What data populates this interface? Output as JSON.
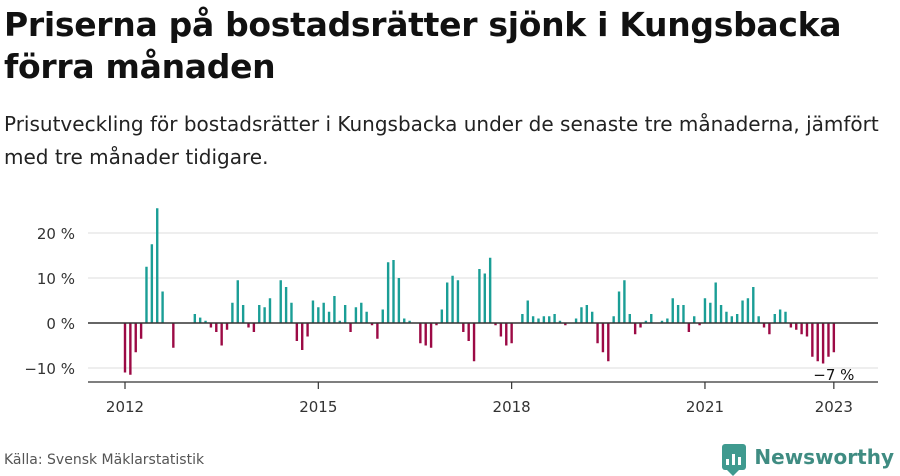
{
  "title": "Priserna på bostadsrätter sjönk i Kungsbacka förra månaden",
  "subtitle": "Prisutveckling för bostadsrätter i Kungsbacka under de senaste tre månaderna, jämfört med tre månader tidigare.",
  "source": "Källa: Svensk Mäklarstatistik",
  "brand": {
    "name": "Newsworthy",
    "icon": "newsworthy-logo-icon",
    "color": "#3f8c82"
  },
  "colors": {
    "positive": "#1a9e96",
    "negative": "#9c0a45",
    "grid": "#dddddd",
    "axis": "#333333"
  },
  "chart_data": {
    "type": "bar",
    "title": "",
    "xlabel": "",
    "ylabel": "",
    "x_start": "2011-10",
    "x_end": "2023-01",
    "y_unit": "%",
    "ylim": [
      -12,
      26
    ],
    "yticks": [
      {
        "value": -10,
        "label": "−10 %"
      },
      {
        "value": 0,
        "label": "0 %"
      },
      {
        "value": 10,
        "label": "10 %"
      },
      {
        "value": 20,
        "label": "20 %"
      }
    ],
    "xticks": [
      {
        "date": "2012-01",
        "label": "2012"
      },
      {
        "date": "2015-01",
        "label": "2015"
      },
      {
        "date": "2018-01",
        "label": "2018"
      },
      {
        "date": "2021-01",
        "label": "2021"
      },
      {
        "date": "2023-01",
        "label": "2023"
      }
    ],
    "grid": true,
    "annotation": {
      "date": "2023-01",
      "label": "−7 %"
    },
    "values": [
      0.0,
      0.0,
      0.0,
      -11.0,
      -11.5,
      -6.5,
      -3.5,
      12.5,
      17.5,
      25.5,
      7.0,
      0.0,
      -5.5,
      0.0,
      0.0,
      0.0,
      2.0,
      1.2,
      0.5,
      -1.0,
      -2.0,
      -5.0,
      -1.5,
      4.5,
      9.5,
      4.0,
      -1.0,
      -2.0,
      4.0,
      3.5,
      5.5,
      0.0,
      9.5,
      8.0,
      4.5,
      -4.0,
      -6.0,
      -3.0,
      5.0,
      3.5,
      4.5,
      2.5,
      6.0,
      0.5,
      4.0,
      -2.0,
      3.5,
      4.5,
      2.5,
      -0.5,
      -3.5,
      3.0,
      13.5,
      14.0,
      10.0,
      1.0,
      0.5,
      0.0,
      -4.5,
      -5.0,
      -5.5,
      -0.5,
      3.0,
      9.0,
      10.5,
      9.5,
      -2.0,
      -4.0,
      -8.5,
      12.0,
      11.0,
      14.5,
      -0.5,
      -3.0,
      -5.0,
      -4.5,
      0.0,
      2.0,
      5.0,
      1.5,
      1.0,
      1.5,
      1.5,
      2.0,
      0.5,
      -0.5,
      0.0,
      1.0,
      3.5,
      4.0,
      2.5,
      -4.5,
      -6.5,
      -8.5,
      1.5,
      7.0,
      9.5,
      2.0,
      -2.5,
      -1.0,
      0.5,
      2.0,
      0.0,
      0.5,
      1.0,
      5.5,
      4.0,
      4.0,
      -2.0,
      1.5,
      -0.5,
      5.5,
      4.5,
      9.0,
      4.0,
      2.5,
      1.5,
      2.0,
      5.0,
      5.5,
      8.0,
      1.5,
      -1.0,
      -2.5,
      2.0,
      3.0,
      2.5,
      -1.0,
      -1.5,
      -2.5,
      -3.0,
      -7.5,
      -8.5,
      -9.0,
      -7.5,
      -6.5
    ]
  }
}
